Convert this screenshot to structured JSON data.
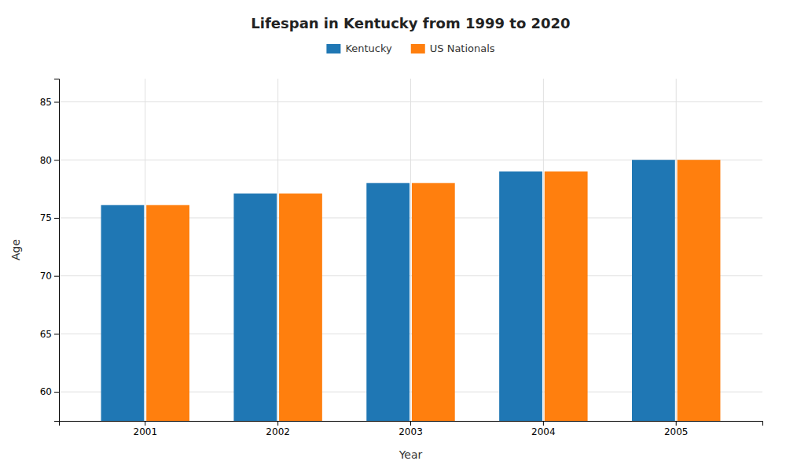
{
  "chart_data": {
    "type": "bar",
    "title": "Lifespan in Kentucky from 1999 to 2020",
    "xlabel": "Year",
    "ylabel": "Age",
    "categories": [
      "2001",
      "2002",
      "2003",
      "2004",
      "2005"
    ],
    "series": [
      {
        "name": "Kentucky",
        "values": [
          76.1,
          77.1,
          78.0,
          79.0,
          80.0
        ]
      },
      {
        "name": "US Nationals",
        "values": [
          76.1,
          77.1,
          78.0,
          79.0,
          80.0
        ]
      }
    ],
    "ylim": [
      57.5,
      87
    ],
    "yticks": [
      60,
      65,
      70,
      75,
      80,
      85
    ],
    "grid": true,
    "legend": "top"
  }
}
